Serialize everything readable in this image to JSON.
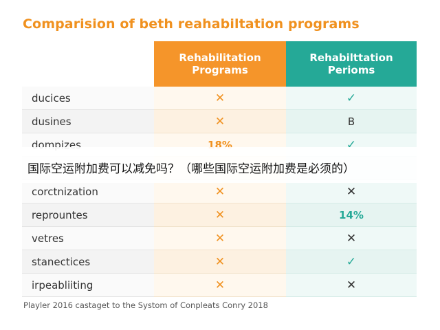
{
  "chart_data": {
    "type": "table",
    "title": "Comparision of beth reahabiltation programs",
    "columns": [
      "Rehabilitation Programs",
      "Rehabilttation Perioms"
    ],
    "rows": [
      {
        "label": "ducices",
        "values": [
          "✕",
          "✓"
        ]
      },
      {
        "label": "dusines",
        "values": [
          "✕",
          "B"
        ]
      },
      {
        "label": "dompizes",
        "values": [
          "18%",
          "✓"
        ]
      },
      {
        "label": "",
        "values": [
          "",
          ""
        ]
      },
      {
        "label": "corctnization",
        "values": [
          "✕",
          "✕"
        ]
      },
      {
        "label": "reprountes",
        "values": [
          "✕",
          "14%"
        ]
      },
      {
        "label": "vetres",
        "values": [
          "✕",
          "✕"
        ]
      },
      {
        "label": "stanectices",
        "values": [
          "✕",
          "✓"
        ]
      },
      {
        "label": "irpeabliiting",
        "values": [
          "✕",
          "✕"
        ]
      }
    ],
    "caption": "Playler 2016 castaget to the Systom of Conpleats Conry 2018"
  },
  "overlay_text": "国际空运附加费可以减免吗？（哪些国际空运附加费是必须的）",
  "colors": {
    "accent_orange": "#f5952a",
    "accent_teal": "#25a997"
  }
}
